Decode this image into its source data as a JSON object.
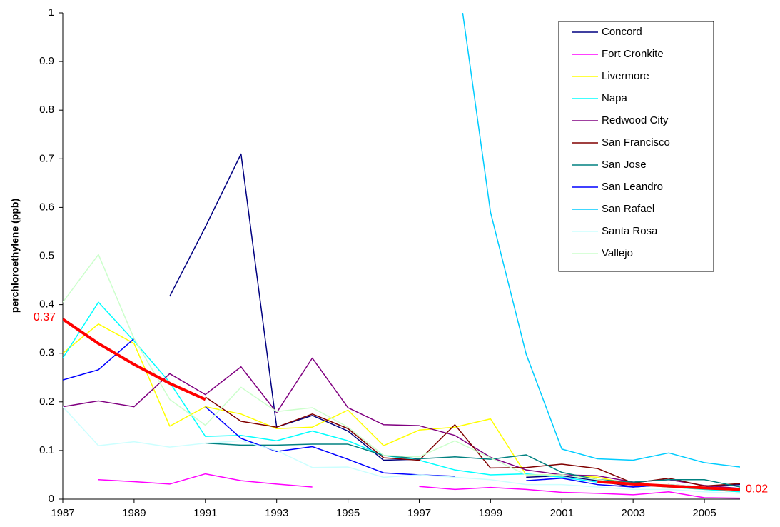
{
  "chart_data": {
    "type": "line",
    "y_label": "perchloroethylene (ppb)",
    "x": [
      1987,
      1988,
      1989,
      1990,
      1991,
      1992,
      1993,
      1994,
      1995,
      1996,
      1997,
      1998,
      1999,
      2000,
      2001,
      2002,
      2003,
      2004,
      2005,
      2006
    ],
    "xlim": [
      1987,
      2006
    ],
    "xticks": [
      1987,
      1989,
      1991,
      1993,
      1995,
      1997,
      1999,
      2001,
      2003,
      2005
    ],
    "ylim": [
      0,
      1
    ],
    "yticks": [
      0,
      0.1,
      0.2,
      0.3,
      0.4,
      0.5,
      0.6,
      0.7,
      0.8,
      0.9,
      1
    ],
    "grid": false,
    "legend": "upper-right",
    "series": [
      {
        "name": "Concord",
        "color": "#000080",
        "values": [
          null,
          null,
          null,
          0.417,
          0.56,
          0.71,
          0.148,
          0.172,
          0.14,
          0.08,
          0.082,
          null,
          null,
          0.045,
          0.048,
          0.038,
          0.025,
          0.03,
          0.025,
          0.03
        ]
      },
      {
        "name": "Fort Cronkite",
        "color": "#ff00ff",
        "values": [
          null,
          0.04,
          0.036,
          0.031,
          0.052,
          0.038,
          0.031,
          0.025,
          null,
          null,
          0.026,
          0.02,
          0.024,
          0.02,
          0.014,
          0.012,
          0.009,
          0.015,
          0.003,
          0.002
        ]
      },
      {
        "name": "Livermore",
        "color": "#ffff00",
        "values": [
          0.3,
          0.36,
          0.32,
          0.15,
          0.19,
          0.175,
          0.145,
          0.148,
          0.183,
          0.11,
          0.142,
          0.148,
          0.165,
          0.05,
          0.05,
          0.045,
          0.03,
          0.025,
          0.02,
          0.015
        ]
      },
      {
        "name": "Napa",
        "color": "#00ffff",
        "values": [
          0.29,
          0.405,
          0.325,
          0.24,
          0.129,
          0.131,
          0.12,
          0.14,
          0.12,
          0.09,
          0.08,
          0.06,
          0.05,
          0.052,
          0.045,
          0.035,
          0.03,
          0.025,
          0.02,
          0.015
        ]
      },
      {
        "name": "Redwood City",
        "color": "#800080",
        "values": [
          0.19,
          0.202,
          0.19,
          0.258,
          0.215,
          0.272,
          0.178,
          0.29,
          0.188,
          0.153,
          0.151,
          0.131,
          0.086,
          0.06,
          0.05,
          0.048,
          0.035,
          0.04,
          0.028,
          0.022
        ]
      },
      {
        "name": "San Francisco",
        "color": "#800000",
        "values": [
          null,
          null,
          null,
          null,
          0.21,
          0.16,
          0.148,
          0.175,
          0.145,
          0.085,
          0.08,
          0.153,
          0.064,
          0.065,
          0.072,
          0.063,
          0.033,
          0.043,
          0.027,
          0.032
        ]
      },
      {
        "name": "San Jose",
        "color": "#008080",
        "values": [
          null,
          null,
          null,
          null,
          0.115,
          0.111,
          0.111,
          0.113,
          0.113,
          0.09,
          0.083,
          0.087,
          0.082,
          0.091,
          0.055,
          0.04,
          0.035,
          0.04,
          0.04,
          0.025
        ]
      },
      {
        "name": "San Leandro",
        "color": "#0000ff",
        "values": [
          0.245,
          0.266,
          0.33,
          null,
          0.19,
          0.125,
          0.098,
          0.108,
          0.082,
          0.054,
          0.05,
          0.047,
          null,
          0.038,
          0.043,
          0.03,
          0.025,
          0.03,
          null,
          null
        ]
      },
      {
        "name": "San Rafael",
        "color": "#00ccff",
        "values": [
          null,
          null,
          null,
          null,
          null,
          null,
          null,
          null,
          null,
          null,
          null,
          1.115,
          0.59,
          0.298,
          0.103,
          0.083,
          0.08,
          0.095,
          0.075,
          0.066
        ]
      },
      {
        "name": "Santa Rosa",
        "color": "#ccffff",
        "values": [
          0.19,
          0.11,
          0.118,
          0.107,
          0.115,
          0.12,
          0.1,
          0.065,
          0.066,
          0.045,
          0.05,
          0.045,
          0.04,
          0.03,
          0.03,
          0.025,
          0.02,
          0.02,
          0.015,
          0.012
        ]
      },
      {
        "name": "Vallejo",
        "color": "#ccffcc",
        "values": [
          0.405,
          0.503,
          0.33,
          0.205,
          0.152,
          0.23,
          0.18,
          0.188,
          0.148,
          0.09,
          0.087,
          0.12,
          0.085,
          0.05,
          0.05,
          0.04,
          0.03,
          0.03,
          0.025,
          0.02
        ]
      },
      {
        "color": "#ff0000",
        "width": 4,
        "values": [
          0.37,
          0.32,
          0.277,
          0.238,
          0.205,
          null,
          null,
          null,
          null,
          null,
          null,
          null,
          null,
          null,
          null,
          0.036,
          0.031,
          0.027,
          0.023,
          0.02
        ],
        "value_labels": [
          "0.37",
          null,
          null,
          null,
          null,
          null,
          null,
          null,
          null,
          null,
          null,
          null,
          null,
          null,
          null,
          null,
          null,
          null,
          null,
          "0.02"
        ]
      }
    ]
  }
}
